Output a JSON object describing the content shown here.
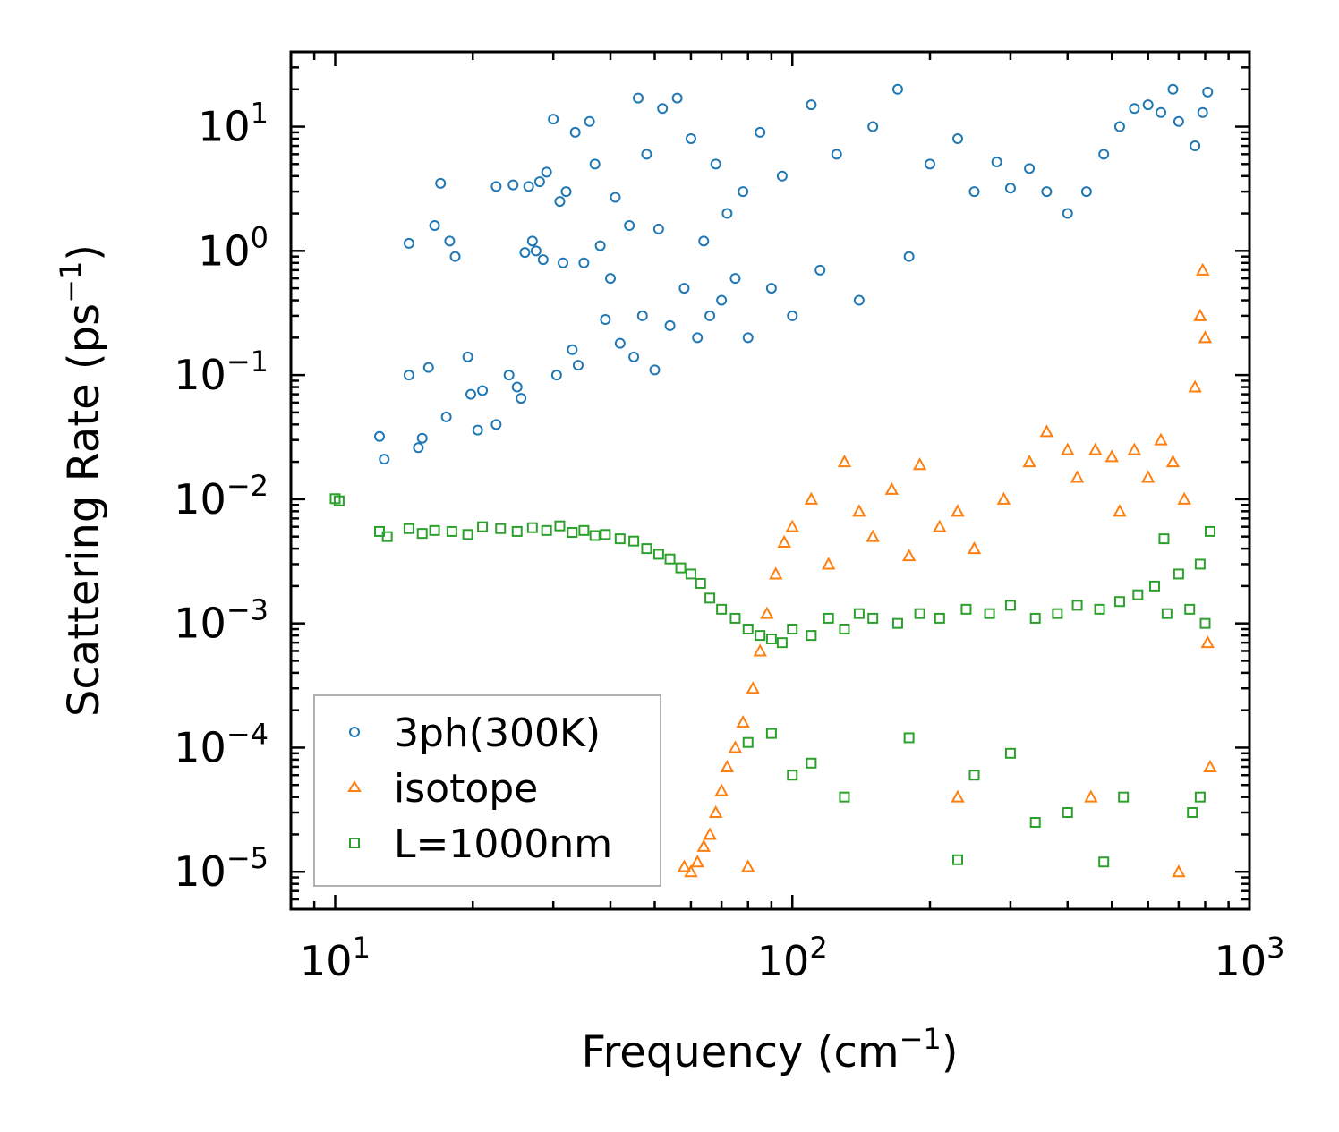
{
  "chart_data": {
    "type": "scatter",
    "title": "",
    "xlabel": {
      "base": "Frequency (cm",
      "exp": "−1",
      "tail": ")"
    },
    "ylabel": {
      "base": "Scattering Rate (ps",
      "exp": "−1",
      "tail": ")"
    },
    "xscale": "log",
    "yscale": "log",
    "xlim": [
      8,
      1000
    ],
    "ylim": [
      5e-06,
      40
    ],
    "grid": false,
    "legend_position": "lower-left",
    "xticks": [
      {
        "value": 10,
        "base": "10",
        "exp": "1"
      },
      {
        "value": 100,
        "base": "10",
        "exp": "2"
      },
      {
        "value": 1000,
        "base": "10",
        "exp": "3"
      }
    ],
    "yticks": [
      {
        "value": 10,
        "base": "10",
        "exp": "1"
      },
      {
        "value": 1,
        "base": "10",
        "exp": "0"
      },
      {
        "value": 0.1,
        "base": "10",
        "exp": "−1"
      },
      {
        "value": 0.01,
        "base": "10",
        "exp": "−2"
      },
      {
        "value": 0.001,
        "base": "10",
        "exp": "−3"
      },
      {
        "value": 0.0001,
        "base": "10",
        "exp": "−4"
      },
      {
        "value": 1e-05,
        "base": "10",
        "exp": "−5"
      }
    ],
    "series": [
      {
        "name": "3ph(300K)",
        "marker": "circle",
        "color": "#1f77b4",
        "points": [
          [
            12.5,
            0.032
          ],
          [
            12.8,
            0.021
          ],
          [
            14.5,
            1.15
          ],
          [
            14.5,
            0.1
          ],
          [
            15.2,
            0.026
          ],
          [
            15.5,
            0.031
          ],
          [
            16.0,
            0.115
          ],
          [
            16.5,
            1.6
          ],
          [
            17.0,
            3.5
          ],
          [
            17.5,
            0.046
          ],
          [
            17.8,
            1.2
          ],
          [
            18.3,
            0.9
          ],
          [
            19.5,
            0.14
          ],
          [
            19.8,
            0.07
          ],
          [
            20.5,
            0.036
          ],
          [
            21.0,
            0.075
          ],
          [
            22.5,
            3.3
          ],
          [
            22.5,
            0.04
          ],
          [
            24.0,
            0.1
          ],
          [
            24.5,
            3.4
          ],
          [
            25.0,
            0.08
          ],
          [
            25.5,
            0.065
          ],
          [
            26.0,
            0.97
          ],
          [
            26.5,
            3.3
          ],
          [
            27.0,
            1.2
          ],
          [
            27.5,
            1.0
          ],
          [
            28.0,
            3.6
          ],
          [
            28.5,
            0.85
          ],
          [
            29.0,
            4.3
          ],
          [
            30.0,
            11.5
          ],
          [
            30.5,
            0.1
          ],
          [
            31.0,
            2.5
          ],
          [
            31.5,
            0.8
          ],
          [
            32.0,
            3.0
          ],
          [
            33.0,
            0.16
          ],
          [
            33.5,
            9.0
          ],
          [
            34.0,
            0.12
          ],
          [
            35.0,
            0.8
          ],
          [
            36.0,
            11.0
          ],
          [
            37.0,
            5.0
          ],
          [
            38.0,
            1.1
          ],
          [
            39.0,
            0.28
          ],
          [
            40.0,
            0.6
          ],
          [
            41.0,
            2.7
          ],
          [
            42.0,
            0.18
          ],
          [
            44.0,
            1.6
          ],
          [
            45.0,
            0.14
          ],
          [
            46.0,
            17.0
          ],
          [
            47.0,
            0.3
          ],
          [
            48.0,
            6.0
          ],
          [
            50.0,
            0.11
          ],
          [
            51.0,
            1.5
          ],
          [
            52.0,
            14.0
          ],
          [
            54.0,
            0.25
          ],
          [
            56.0,
            17.0
          ],
          [
            58.0,
            0.5
          ],
          [
            60.0,
            8.0
          ],
          [
            62.0,
            0.2
          ],
          [
            64.0,
            1.2
          ],
          [
            66.0,
            0.3
          ],
          [
            68.0,
            5.0
          ],
          [
            70.0,
            0.4
          ],
          [
            72.0,
            2.0
          ],
          [
            75.0,
            0.6
          ],
          [
            78.0,
            3.0
          ],
          [
            80.0,
            0.2
          ],
          [
            85.0,
            9.0
          ],
          [
            90.0,
            0.5
          ],
          [
            95.0,
            4.0
          ],
          [
            100.0,
            0.3
          ],
          [
            110.0,
            15.0
          ],
          [
            115.0,
            0.7
          ],
          [
            125.0,
            6.0
          ],
          [
            140.0,
            0.4
          ],
          [
            150.0,
            10.0
          ],
          [
            170.0,
            20.0
          ],
          [
            180.0,
            0.9
          ],
          [
            200.0,
            5.0
          ],
          [
            230.0,
            8.0
          ],
          [
            250.0,
            3.0
          ],
          [
            280.0,
            5.2
          ],
          [
            300.0,
            3.2
          ],
          [
            330.0,
            4.6
          ],
          [
            360.0,
            3.0
          ],
          [
            400.0,
            2.0
          ],
          [
            440.0,
            3.0
          ],
          [
            480.0,
            6.0
          ],
          [
            520.0,
            10.0
          ],
          [
            560.0,
            14.0
          ],
          [
            600.0,
            15.0
          ],
          [
            640.0,
            13.0
          ],
          [
            680.0,
            20.0
          ],
          [
            700.0,
            11.0
          ],
          [
            760.0,
            7.0
          ],
          [
            790.0,
            13.0
          ],
          [
            810.0,
            19.0
          ]
        ]
      },
      {
        "name": "isotope",
        "marker": "triangle",
        "color": "#ff7f0e",
        "points": [
          [
            58.0,
            1.1e-05
          ],
          [
            60.0,
            1e-05
          ],
          [
            62.0,
            1.2e-05
          ],
          [
            64.0,
            1.6e-05
          ],
          [
            66.0,
            2e-05
          ],
          [
            68.0,
            3e-05
          ],
          [
            70.0,
            4.5e-05
          ],
          [
            72.0,
            7e-05
          ],
          [
            75.0,
            0.0001
          ],
          [
            78.0,
            0.00016
          ],
          [
            80.0,
            1.1e-05
          ],
          [
            82.0,
            0.0003
          ],
          [
            85.0,
            0.0006
          ],
          [
            88.0,
            0.0012
          ],
          [
            92.0,
            0.0025
          ],
          [
            96.0,
            0.0045
          ],
          [
            100.0,
            0.006
          ],
          [
            110.0,
            0.01
          ],
          [
            120.0,
            0.003
          ],
          [
            130.0,
            0.02
          ],
          [
            140.0,
            0.008
          ],
          [
            150.0,
            0.005
          ],
          [
            165.0,
            0.012
          ],
          [
            180.0,
            0.0035
          ],
          [
            190.0,
            0.019
          ],
          [
            210.0,
            0.006
          ],
          [
            230.0,
            0.008
          ],
          [
            250.0,
            0.004
          ],
          [
            290.0,
            0.01
          ],
          [
            330.0,
            0.02
          ],
          [
            360.0,
            0.035
          ],
          [
            400.0,
            0.025
          ],
          [
            420.0,
            0.015
          ],
          [
            460.0,
            0.025
          ],
          [
            500.0,
            0.022
          ],
          [
            520.0,
            0.008
          ],
          [
            560.0,
            0.025
          ],
          [
            600.0,
            0.015
          ],
          [
            640.0,
            0.03
          ],
          [
            680.0,
            0.02
          ],
          [
            700.0,
            1e-05
          ],
          [
            720.0,
            0.01
          ],
          [
            760.0,
            0.08
          ],
          [
            780.0,
            0.3
          ],
          [
            790.0,
            0.7
          ],
          [
            800.0,
            0.2
          ],
          [
            810.0,
            0.0007
          ],
          [
            820.0,
            7e-05
          ],
          [
            450.0,
            4e-05
          ],
          [
            230.0,
            4e-05
          ]
        ]
      },
      {
        "name": "L=1000nm",
        "marker": "square",
        "color": "#2ca02c",
        "points": [
          [
            10.0,
            0.0101
          ],
          [
            10.2,
            0.0097
          ],
          [
            12.5,
            0.0055
          ],
          [
            13.0,
            0.005
          ],
          [
            14.5,
            0.0058
          ],
          [
            15.5,
            0.0053
          ],
          [
            16.5,
            0.0056
          ],
          [
            18.0,
            0.0055
          ],
          [
            19.5,
            0.0052
          ],
          [
            21.0,
            0.006
          ],
          [
            23.0,
            0.0058
          ],
          [
            25.0,
            0.0055
          ],
          [
            27.0,
            0.0059
          ],
          [
            29.0,
            0.0056
          ],
          [
            31.0,
            0.0061
          ],
          [
            33.0,
            0.0054
          ],
          [
            35.0,
            0.0056
          ],
          [
            37.0,
            0.0051
          ],
          [
            39.0,
            0.0052
          ],
          [
            42.0,
            0.0048
          ],
          [
            45.0,
            0.0046
          ],
          [
            48.0,
            0.004
          ],
          [
            51.0,
            0.0036
          ],
          [
            54.0,
            0.0033
          ],
          [
            57.0,
            0.0028
          ],
          [
            60.0,
            0.0025
          ],
          [
            63.0,
            0.0021
          ],
          [
            66.0,
            0.0016
          ],
          [
            70.0,
            0.0013
          ],
          [
            75.0,
            0.0011
          ],
          [
            80.0,
            0.0009
          ],
          [
            85.0,
            0.0008
          ],
          [
            90.0,
            0.00075
          ],
          [
            95.0,
            0.0007
          ],
          [
            100.0,
            0.0009
          ],
          [
            110.0,
            0.0008
          ],
          [
            120.0,
            0.0011
          ],
          [
            130.0,
            0.0009
          ],
          [
            140.0,
            0.0012
          ],
          [
            150.0,
            0.0011
          ],
          [
            170.0,
            0.001
          ],
          [
            190.0,
            0.0012
          ],
          [
            210.0,
            0.0011
          ],
          [
            240.0,
            0.0013
          ],
          [
            270.0,
            0.0012
          ],
          [
            300.0,
            0.0014
          ],
          [
            340.0,
            0.0011
          ],
          [
            380.0,
            0.0012
          ],
          [
            420.0,
            0.0014
          ],
          [
            470.0,
            0.0013
          ],
          [
            520.0,
            0.0015
          ],
          [
            570.0,
            0.0017
          ],
          [
            620.0,
            0.002
          ],
          [
            660.0,
            0.0012
          ],
          [
            700.0,
            0.0025
          ],
          [
            740.0,
            0.0013
          ],
          [
            780.0,
            0.003
          ],
          [
            800.0,
            0.001
          ],
          [
            820.0,
            0.0055
          ],
          [
            90.0,
            0.00013
          ],
          [
            110.0,
            7.5e-05
          ],
          [
            130.0,
            4e-05
          ],
          [
            180.0,
            0.00012
          ],
          [
            230.0,
            1.25e-05
          ],
          [
            250.0,
            6e-05
          ],
          [
            300.0,
            9e-05
          ],
          [
            400.0,
            3e-05
          ],
          [
            480.0,
            1.2e-05
          ],
          [
            530.0,
            4e-05
          ],
          [
            750.0,
            3e-05
          ],
          [
            650.0,
            0.0048
          ],
          [
            780.0,
            4e-05
          ],
          [
            80.0,
            0.00011
          ],
          [
            100.0,
            6e-05
          ],
          [
            340.0,
            2.5e-05
          ]
        ]
      }
    ]
  }
}
